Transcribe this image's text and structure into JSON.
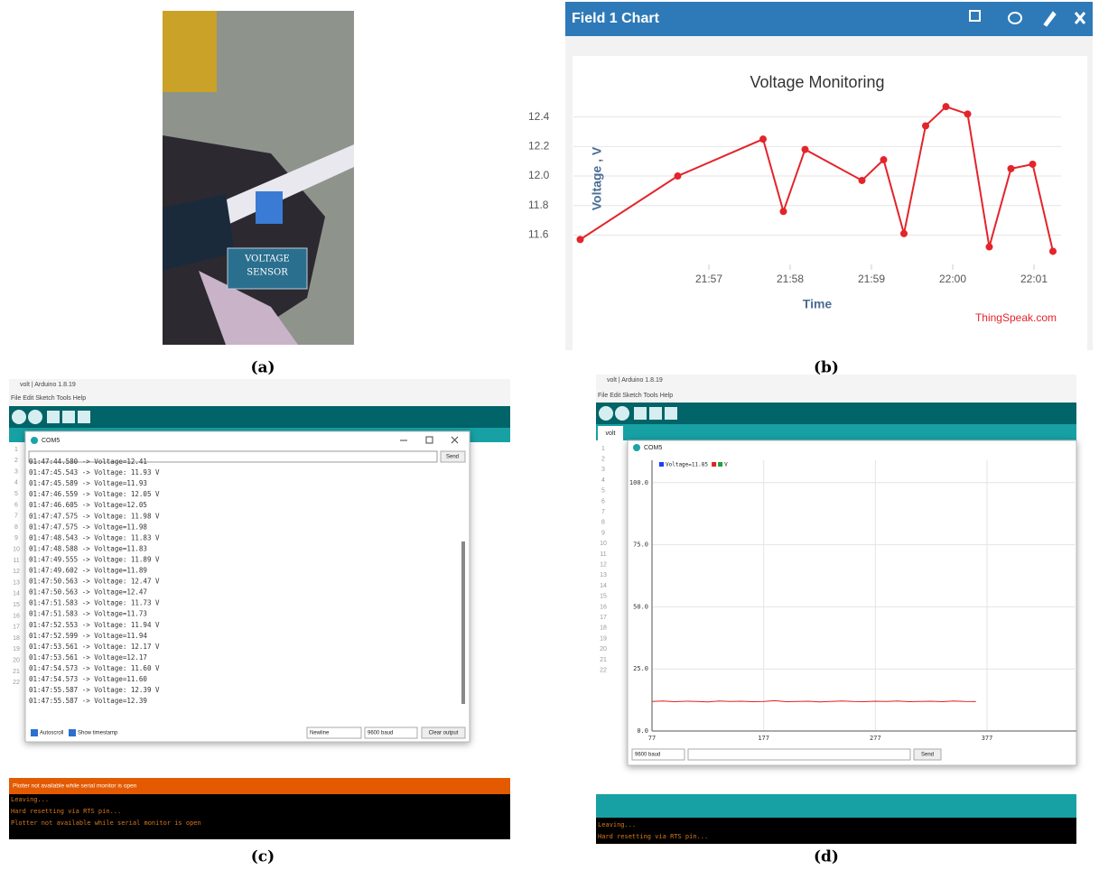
{
  "captions": [
    "(a)",
    "(b)",
    "(c)",
    "(d)"
  ],
  "photo": {
    "label": [
      "VOLTAGE",
      "SENSOR"
    ]
  },
  "thingspeak": {
    "header": "Field 1 Chart",
    "credit": "ThingSpeak.com"
  },
  "chart_data": [
    {
      "type": "line",
      "title": "Voltage Monitoring",
      "x_label": "Time",
      "y_label": "Voltage , V",
      "x": [
        "21:55:25",
        "21:56:37",
        "21:57:40",
        "21:57:55",
        "21:58:11",
        "21:58:53",
        "21:59:09",
        "21:59:24",
        "21:59:40",
        "21:59:55",
        "22:00:11",
        "22:00:27",
        "22:00:43",
        "22:00:59",
        "22:01:14"
      ],
      "series": [
        {
          "color": "#e3242b",
          "values": [
            11.57,
            12.0,
            12.25,
            11.76,
            12.18,
            11.97,
            12.11,
            11.61,
            12.34,
            12.47,
            12.42,
            11.52,
            12.05,
            12.08,
            11.49
          ]
        }
      ],
      "xlim": [
        "21:55:20",
        "22:01:20"
      ],
      "xticks": [
        "21:57",
        "21:58",
        "21:59",
        "22:00",
        "22:01"
      ],
      "ylim": [
        11.45,
        12.52
      ],
      "yticks": [
        11.6,
        11.8,
        {
          "value": 12,
          "label": "12.0"
        },
        12.2,
        12.4
      ],
      "grid": true,
      "markers": true
    },
    {
      "type": "line",
      "legend": [
        {
          "color": "#1a3cff",
          "label": "Voltage=11.85"
        },
        {
          "color": "#e02020"
        },
        {
          "color": "#20a040",
          "label": "V"
        }
      ],
      "x": [
        77,
        87,
        97,
        107,
        117,
        127,
        137,
        147,
        157,
        167,
        177,
        187,
        197,
        207,
        217,
        227,
        237,
        247,
        257,
        267,
        277,
        287,
        297,
        307,
        317,
        327,
        337,
        347,
        357,
        367
      ],
      "series": [
        {
          "color": "#e02020",
          "values": [
            11.9,
            12.1,
            11.8,
            12.0,
            11.9,
            11.7,
            12.1,
            11.9,
            12.0,
            11.8,
            11.9,
            12.2,
            11.8,
            11.9,
            12.0,
            11.7,
            11.9,
            12.1,
            11.9,
            11.8,
            12.0,
            11.9,
            12.1,
            11.8,
            11.9,
            12.0,
            11.8,
            12.1,
            11.9,
            11.85
          ]
        }
      ],
      "xlim": [
        77,
        457
      ],
      "xticks": [
        77,
        177,
        277,
        377
      ],
      "ylim": [
        0,
        109
      ],
      "yticks": [
        {
          "value": 0,
          "label": "0.0"
        },
        {
          "value": 25,
          "label": "25.0"
        },
        {
          "value": 50,
          "label": "50.0"
        },
        {
          "value": 75,
          "label": "75.0"
        },
        {
          "value": 100,
          "label": "100.0"
        }
      ],
      "grid": true,
      "markers": false
    }
  ],
  "ide_c": {
    "title": "volt | Arduino 1.8.19",
    "menu": "File Edit Sketch Tools Help",
    "line_numbers": [
      1,
      2,
      3,
      4,
      5,
      6,
      7,
      8,
      9,
      10,
      11,
      12,
      13,
      14,
      15,
      16,
      17,
      18,
      19,
      20,
      21,
      22
    ],
    "monitor": {
      "title": "COM5",
      "send": "Send",
      "lines": [
        "01:47:44.580 -> Voltage=12.41",
        "01:47:45.543 -> Voltage: 11.93 V",
        "01:47:45.589 -> Voltage=11.93",
        "01:47:46.559 -> Voltage: 12.05 V",
        "01:47:46.605 -> Voltage=12.05",
        "01:47:47.575 -> Voltage: 11.98 V",
        "01:47:47.575 -> Voltage=11.98",
        "01:47:48.543 -> Voltage: 11.83 V",
        "01:47:48.588 -> Voltage=11.83",
        "01:47:49.555 -> Voltage: 11.89 V",
        "01:47:49.602 -> Voltage=11.89",
        "01:47:50.563 -> Voltage: 12.47 V",
        "01:47:50.563 -> Voltage=12.47",
        "01:47:51.583 -> Voltage: 11.73 V",
        "01:47:51.583 -> Voltage=11.73",
        "01:47:52.553 -> Voltage: 11.94 V",
        "01:47:52.599 -> Voltage=11.94",
        "01:47:53.561 -> Voltage: 12.17 V",
        "01:47:53.561 -> Voltage=12.17",
        "01:47:54.573 -> Voltage: 11.60 V",
        "01:47:54.573 -> Voltage=11.60",
        "01:47:55.587 -> Voltage: 12.39 V",
        "01:47:55.587 -> Voltage=12.39"
      ],
      "autoscroll": "Autoscroll",
      "timestamp": "Show timestamp",
      "line_ending": "Newline",
      "baud": "9600 baud",
      "clear": "Clear output"
    },
    "status": "Plotter not available while serial monitor is open",
    "console": [
      "Leaving...",
      "Hard resetting via RTS pin...",
      "Plotter not available while serial monitor is open"
    ]
  },
  "ide_d": {
    "title": "volt | Arduino 1.8.19",
    "menu": "File Edit Sketch Tools Help",
    "tab": "volt",
    "line_numbers": [
      1,
      2,
      3,
      4,
      5,
      6,
      7,
      8,
      9,
      10,
      11,
      12,
      13,
      14,
      15,
      16,
      17,
      18,
      19,
      20,
      21,
      22
    ],
    "monitor": {
      "title": "COM5",
      "baud": "9600 baud",
      "send": "Send"
    },
    "console": [
      "Leaving...",
      "Hard resetting via RTS pin..."
    ]
  }
}
